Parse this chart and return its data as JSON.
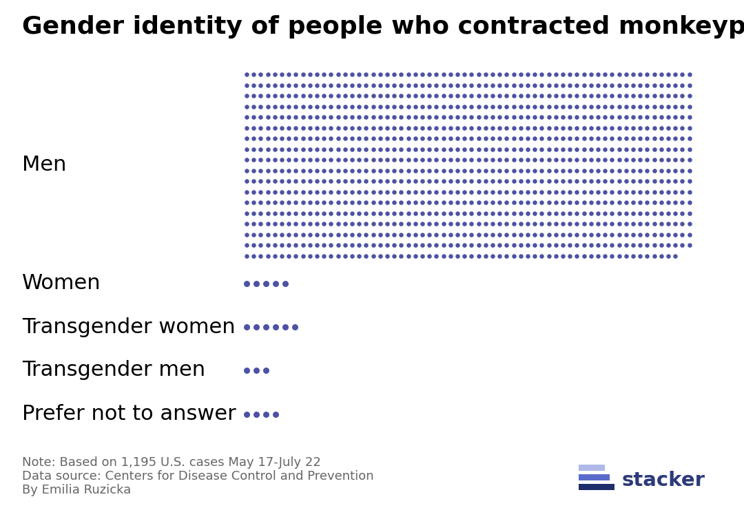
{
  "title": "Gender identity of people who contracted monkeypox",
  "categories": [
    "Men",
    "Women",
    "Transgender women",
    "Transgender men",
    "Prefer not to answer"
  ],
  "dot_counts": [
    1150,
    5,
    6,
    3,
    4
  ],
  "dot_color": "#4d52a4",
  "men_cols": 64,
  "background_color": "#ffffff",
  "note_line1": "Note: Based on 1,195 U.S. cases May 17-July 22",
  "note_line2": "Data source: Centers for Disease Control and Prevention",
  "note_line3": "By Emilia Ruzicka",
  "title_fontsize": 26,
  "label_fontsize": 22,
  "note_fontsize": 13,
  "logo_text": "stacker",
  "logo_color": "#2d3a7a",
  "logo_bar_colors": [
    "#1e2d6b",
    "#5a6bcc",
    "#b0b8e8"
  ]
}
